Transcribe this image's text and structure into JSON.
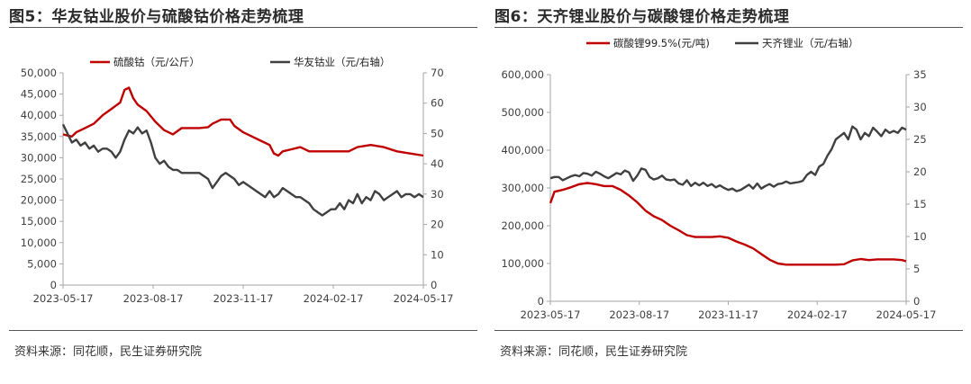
{
  "colors": {
    "red": "#c00000",
    "gray": "#404040",
    "axis": "#a6a6a6",
    "text": "#404040"
  },
  "chart_data": [
    {
      "type": "line",
      "title": "图5：华友钴业股价与硫酸钴价格走势梳理",
      "source": "资料来源：同花顺，民生证券研究院",
      "x_ticks": [
        "2023-05-17",
        "2023-08-17",
        "2023-11-17",
        "2024-02-17",
        "2024-05-17"
      ],
      "y_left": {
        "range": [
          0,
          50000
        ],
        "ticks": [
          "0",
          "5,000",
          "10,000",
          "15,000",
          "20,000",
          "25,000",
          "30,000",
          "35,000",
          "40,000",
          "45,000",
          "50,000"
        ]
      },
      "y_right": {
        "range": [
          0,
          70
        ],
        "ticks": [
          "0",
          "10",
          "20",
          "30",
          "40",
          "50",
          "60",
          "70"
        ]
      },
      "series": [
        {
          "name": "硫酸钴（元/公斤）",
          "axis": "left",
          "color": "#c00000",
          "points": [
            [
              0,
              35500
            ],
            [
              4,
              35000
            ],
            [
              6,
              36000
            ],
            [
              10,
              37000
            ],
            [
              14,
              38000
            ],
            [
              18,
              40000
            ],
            [
              22,
              41500
            ],
            [
              26,
              43000
            ],
            [
              28,
              46000
            ],
            [
              30,
              46500
            ],
            [
              32,
              44000
            ],
            [
              34,
              42500
            ],
            [
              38,
              41000
            ],
            [
              42,
              38500
            ],
            [
              46,
              36500
            ],
            [
              50,
              35500
            ],
            [
              54,
              37000
            ],
            [
              58,
              37000
            ],
            [
              62,
              37000
            ],
            [
              66,
              37200
            ],
            [
              68,
              38000
            ],
            [
              72,
              39000
            ],
            [
              76,
              39000
            ],
            [
              78,
              37500
            ],
            [
              82,
              36000
            ],
            [
              86,
              35000
            ],
            [
              90,
              34000
            ],
            [
              94,
              33000
            ],
            [
              96,
              31000
            ],
            [
              98,
              30500
            ],
            [
              100,
              31500
            ],
            [
              104,
              32000
            ],
            [
              108,
              32500
            ],
            [
              112,
              31500
            ],
            [
              118,
              31500
            ],
            [
              124,
              31500
            ],
            [
              130,
              31500
            ],
            [
              134,
              32500
            ],
            [
              140,
              33000
            ],
            [
              146,
              32500
            ],
            [
              152,
              31500
            ],
            [
              158,
              31000
            ],
            [
              164,
              30500
            ]
          ]
        },
        {
          "name": "华友钴业（元/右轴）",
          "axis": "right",
          "color": "#404040",
          "points": [
            [
              0,
              53
            ],
            [
              2,
              50
            ],
            [
              4,
              47
            ],
            [
              6,
              48
            ],
            [
              8,
              46
            ],
            [
              10,
              47
            ],
            [
              12,
              45
            ],
            [
              14,
              46
            ],
            [
              16,
              44
            ],
            [
              18,
              45
            ],
            [
              20,
              45
            ],
            [
              22,
              44
            ],
            [
              24,
              42
            ],
            [
              26,
              44
            ],
            [
              28,
              48
            ],
            [
              30,
              51
            ],
            [
              32,
              50
            ],
            [
              34,
              52
            ],
            [
              36,
              50
            ],
            [
              38,
              51
            ],
            [
              40,
              47
            ],
            [
              42,
              42
            ],
            [
              44,
              40
            ],
            [
              46,
              41
            ],
            [
              48,
              39
            ],
            [
              50,
              38
            ],
            [
              52,
              38
            ],
            [
              54,
              37
            ],
            [
              56,
              37
            ],
            [
              58,
              37
            ],
            [
              60,
              37
            ],
            [
              62,
              37
            ],
            [
              64,
              36
            ],
            [
              66,
              35
            ],
            [
              68,
              32
            ],
            [
              70,
              34
            ],
            [
              72,
              36
            ],
            [
              74,
              37
            ],
            [
              76,
              36
            ],
            [
              78,
              35
            ],
            [
              80,
              33
            ],
            [
              82,
              34
            ],
            [
              84,
              33
            ],
            [
              86,
              32
            ],
            [
              88,
              31
            ],
            [
              90,
              30
            ],
            [
              92,
              29
            ],
            [
              94,
              31
            ],
            [
              96,
              29
            ],
            [
              98,
              30
            ],
            [
              100,
              32
            ],
            [
              102,
              31
            ],
            [
              104,
              30
            ],
            [
              106,
              29
            ],
            [
              108,
              29
            ],
            [
              110,
              28
            ],
            [
              112,
              27
            ],
            [
              114,
              25
            ],
            [
              116,
              24
            ],
            [
              118,
              23
            ],
            [
              120,
              24
            ],
            [
              122,
              25
            ],
            [
              124,
              25
            ],
            [
              126,
              27
            ],
            [
              128,
              25
            ],
            [
              130,
              28
            ],
            [
              132,
              27
            ],
            [
              134,
              30
            ],
            [
              136,
              27
            ],
            [
              138,
              29
            ],
            [
              140,
              28
            ],
            [
              142,
              31
            ],
            [
              144,
              30
            ],
            [
              146,
              28
            ],
            [
              148,
              29
            ],
            [
              150,
              30
            ],
            [
              152,
              31
            ],
            [
              154,
              29
            ],
            [
              156,
              30
            ],
            [
              158,
              30
            ],
            [
              160,
              29
            ],
            [
              162,
              30
            ],
            [
              164,
              29
            ]
          ]
        }
      ]
    },
    {
      "type": "line",
      "title": "图6：天齐锂业股价与碳酸锂价格走势梳理",
      "source": "资料来源：同花顺，民生证券研究院",
      "x_ticks": [
        "2023-05-17",
        "2023-08-17",
        "2023-11-17",
        "2024-02-17",
        "2024-05-17"
      ],
      "y_left": {
        "range": [
          0,
          600000
        ],
        "ticks": [
          "0",
          "100,000",
          "200,000",
          "300,000",
          "400,000",
          "500,000",
          "600,000"
        ]
      },
      "y_right": {
        "range": [
          0,
          35
        ],
        "ticks": [
          "0",
          "5",
          "10",
          "15",
          "20",
          "25",
          "30",
          "35"
        ]
      },
      "series": [
        {
          "name": "碳酸锂99.5%(元/吨)",
          "axis": "left",
          "color": "#c00000",
          "points": [
            [
              0,
              260000
            ],
            [
              2,
              290000
            ],
            [
              6,
              295000
            ],
            [
              10,
              302000
            ],
            [
              14,
              310000
            ],
            [
              18,
              313000
            ],
            [
              22,
              310000
            ],
            [
              26,
              305000
            ],
            [
              30,
              305000
            ],
            [
              34,
              295000
            ],
            [
              38,
              280000
            ],
            [
              42,
              262000
            ],
            [
              46,
              240000
            ],
            [
              50,
              225000
            ],
            [
              54,
              215000
            ],
            [
              58,
              200000
            ],
            [
              62,
              188000
            ],
            [
              66,
              175000
            ],
            [
              70,
              170000
            ],
            [
              74,
              170000
            ],
            [
              78,
              170000
            ],
            [
              82,
              172000
            ],
            [
              86,
              168000
            ],
            [
              90,
              158000
            ],
            [
              94,
              150000
            ],
            [
              98,
              140000
            ],
            [
              102,
              125000
            ],
            [
              106,
              110000
            ],
            [
              110,
              100000
            ],
            [
              114,
              97000
            ],
            [
              120,
              97000
            ],
            [
              126,
              97000
            ],
            [
              132,
              97000
            ],
            [
              138,
              97000
            ],
            [
              142,
              98000
            ],
            [
              146,
              108000
            ],
            [
              150,
              112000
            ],
            [
              154,
              109000
            ],
            [
              158,
              111000
            ],
            [
              162,
              111000
            ],
            [
              166,
              111000
            ],
            [
              170,
              109000
            ],
            [
              172,
              106000
            ]
          ]
        },
        {
          "name": "天齐锂业（元/右轴）",
          "axis": "right",
          "color": "#404040",
          "points": [
            [
              0,
              19
            ],
            [
              2,
              19.2
            ],
            [
              4,
              19.2
            ],
            [
              6,
              18.7
            ],
            [
              8,
              19.0
            ],
            [
              10,
              19.3
            ],
            [
              12,
              19.5
            ],
            [
              14,
              19.3
            ],
            [
              16,
              19.8
            ],
            [
              18,
              19.7
            ],
            [
              20,
              19.4
            ],
            [
              22,
              20.0
            ],
            [
              24,
              19.7
            ],
            [
              26,
              19.3
            ],
            [
              28,
              19.0
            ],
            [
              30,
              19.4
            ],
            [
              32,
              19.8
            ],
            [
              34,
              19.6
            ],
            [
              36,
              20.2
            ],
            [
              38,
              19.9
            ],
            [
              40,
              18.6
            ],
            [
              42,
              19.4
            ],
            [
              44,
              20.5
            ],
            [
              46,
              20.3
            ],
            [
              48,
              19.2
            ],
            [
              50,
              18.8
            ],
            [
              52,
              19.0
            ],
            [
              54,
              19.4
            ],
            [
              56,
              18.8
            ],
            [
              58,
              18.7
            ],
            [
              60,
              18.8
            ],
            [
              62,
              18.2
            ],
            [
              64,
              18.0
            ],
            [
              66,
              18.7
            ],
            [
              68,
              17.8
            ],
            [
              70,
              18.3
            ],
            [
              72,
              17.9
            ],
            [
              74,
              18.3
            ],
            [
              76,
              17.8
            ],
            [
              78,
              18.1
            ],
            [
              80,
              17.6
            ],
            [
              82,
              17.9
            ],
            [
              84,
              17.5
            ],
            [
              86,
              17.2
            ],
            [
              88,
              17.4
            ],
            [
              90,
              17.0
            ],
            [
              92,
              17.2
            ],
            [
              94,
              17.6
            ],
            [
              96,
              18.0
            ],
            [
              98,
              17.4
            ],
            [
              100,
              18.2
            ],
            [
              102,
              17.4
            ],
            [
              104,
              17.8
            ],
            [
              106,
              18.1
            ],
            [
              108,
              17.7
            ],
            [
              110,
              18.1
            ],
            [
              112,
              18.2
            ],
            [
              114,
              18.5
            ],
            [
              116,
              18.2
            ],
            [
              118,
              18.3
            ],
            [
              120,
              18.4
            ],
            [
              122,
              18.6
            ],
            [
              124,
              19.5
            ],
            [
              126,
              20.0
            ],
            [
              128,
              19.5
            ],
            [
              130,
              20.8
            ],
            [
              132,
              21.2
            ],
            [
              134,
              22.5
            ],
            [
              136,
              23.5
            ],
            [
              138,
              25.0
            ],
            [
              140,
              25.5
            ],
            [
              142,
              26.0
            ],
            [
              144,
              25.0
            ],
            [
              146,
              27.0
            ],
            [
              148,
              26.5
            ],
            [
              150,
              25.0
            ],
            [
              152,
              26.0
            ],
            [
              154,
              25.5
            ],
            [
              156,
              26.8
            ],
            [
              158,
              26.2
            ],
            [
              160,
              25.5
            ],
            [
              162,
              26.5
            ],
            [
              164,
              26.0
            ],
            [
              166,
              26.3
            ],
            [
              168,
              26.0
            ],
            [
              170,
              26.8
            ],
            [
              172,
              26.5
            ]
          ]
        }
      ]
    }
  ]
}
